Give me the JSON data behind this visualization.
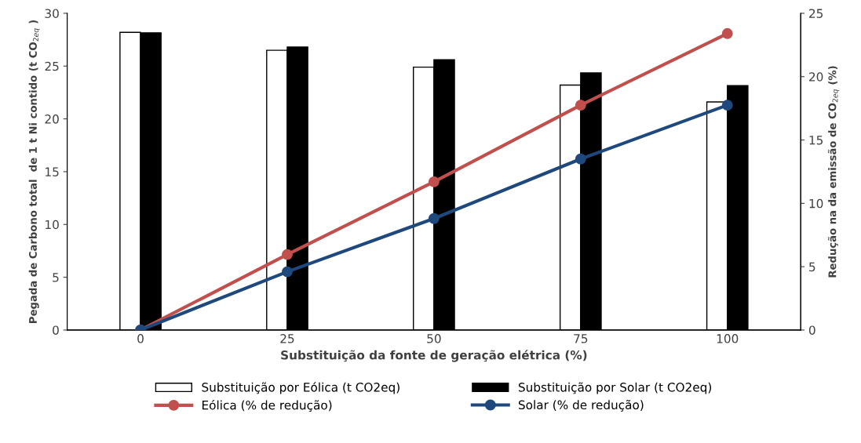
{
  "chart_data": {
    "type": "bar",
    "xlabel": "Substituição da fonte de geração elétrica (%)",
    "ylabel": "Pegada de Carbono total  de 1 t Ni contido (t CO$_{2eq}$ )",
    "y2label": "Redução na da emissão de CO$_{2eq}$ (%)",
    "categories": [
      "0",
      "25",
      "50",
      "75",
      "100"
    ],
    "series": [
      {
        "name": "Substituição por Eólica (t CO2eq)",
        "color": "#ffffff",
        "values": [
          28.2,
          26.5,
          24.9,
          23.2,
          21.6
        ]
      },
      {
        "name": "Substituição por Solar (t CO2eq)",
        "color": "#000000",
        "values": [
          28.15,
          26.8,
          25.6,
          24.35,
          23.15
        ]
      },
      {
        "name": "Eólica (% de redução)",
        "type": "line",
        "axis": "y2",
        "color": "#c0504d",
        "values": [
          0,
          5.96,
          11.7,
          17.75,
          23.4
        ]
      },
      {
        "name": "Solar (% de redução)",
        "type": "line",
        "axis": "y2",
        "color": "#1f497d",
        "values": [
          0,
          4.6,
          8.8,
          13.5,
          17.75
        ]
      }
    ],
    "ylim": [
      0,
      30
    ],
    "yticks": [
      0,
      5,
      10,
      15,
      20,
      25,
      30
    ],
    "y2lim": [
      0,
      25
    ],
    "y2ticks": [
      0,
      5,
      10,
      15,
      20,
      25
    ],
    "grid": false,
    "legend": "bottom",
    "marker": "circle",
    "line_style": "solid"
  }
}
